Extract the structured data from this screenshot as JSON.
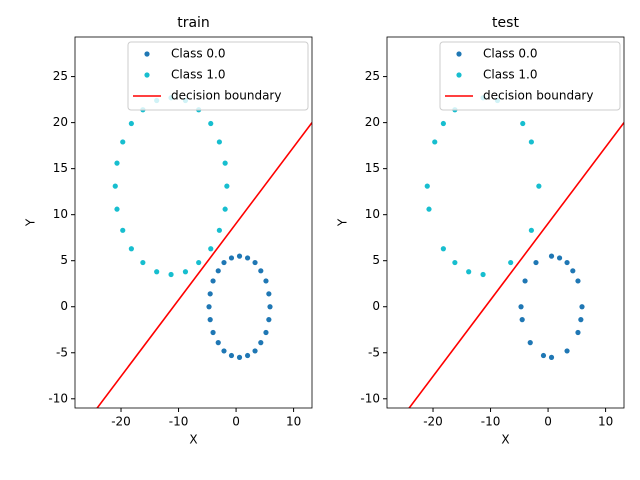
{
  "chart_data": [
    {
      "type": "scatter",
      "title": "train",
      "xlabel": "X",
      "ylabel": "Y",
      "xlim": [
        -28,
        13.2
      ],
      "ylim": [
        -11,
        29.3
      ],
      "xticks": [
        -20,
        -10,
        0,
        10
      ],
      "yticks": [
        -10,
        -5,
        0,
        5,
        10,
        15,
        20,
        25
      ],
      "legend": "upper right",
      "series": [
        {
          "name": "Class 0.0",
          "color": "#1f77b4",
          "x": [
            5.9,
            5.7,
            5.2,
            4.3,
            3.3,
            2.0,
            0.6,
            -0.8,
            -2.1,
            -3.1,
            -4.0,
            -4.5,
            -4.7,
            -4.5,
            -4.0,
            -3.1,
            -2.1,
            -0.8,
            0.6,
            2.0,
            3.3,
            4.3,
            5.2,
            5.7
          ],
          "y": [
            0,
            1.4,
            2.8,
            3.9,
            4.8,
            5.3,
            5.5,
            5.3,
            4.8,
            3.9,
            2.8,
            1.4,
            0,
            -1.4,
            -2.8,
            -3.9,
            -4.8,
            -5.3,
            -5.5,
            -5.3,
            -4.8,
            -3.9,
            -2.8,
            -1.4
          ]
        },
        {
          "name": "Class 1.0",
          "color": "#17becf",
          "x": [
            -1.6,
            -1.9,
            -2.9,
            -4.4,
            -6.5,
            -8.8,
            -11.3,
            -13.8,
            -16.2,
            -18.2,
            -19.7,
            -20.7,
            -21.0,
            -20.7,
            -19.7,
            -18.2,
            -16.2,
            -13.8,
            -11.3,
            -8.8,
            -6.5,
            -4.4,
            -2.9,
            -1.9
          ],
          "y": [
            13.1,
            15.6,
            17.9,
            19.9,
            21.4,
            22.4,
            22.7,
            22.4,
            21.4,
            19.9,
            17.9,
            15.6,
            13.1,
            10.6,
            8.3,
            6.3,
            4.8,
            3.8,
            3.5,
            3.8,
            4.8,
            6.3,
            8.3,
            10.6
          ]
        },
        {
          "name": "decision boundary",
          "color": "#ff0000",
          "type": "line",
          "x": [
            -28,
            13.2
          ],
          "y": [
            -14.2,
            20
          ]
        }
      ]
    },
    {
      "type": "scatter",
      "title": "test",
      "xlabel": "X",
      "ylabel": "Y",
      "xlim": [
        -28,
        13.2
      ],
      "ylim": [
        -11,
        29.3
      ],
      "xticks": [
        -20,
        -10,
        0,
        10
      ],
      "yticks": [
        -10,
        -5,
        0,
        5,
        10,
        15,
        20,
        25
      ],
      "legend": "upper right",
      "series": [
        {
          "name": "Class 0.0",
          "color": "#1f77b4",
          "x": [
            5.9,
            5.2,
            3.3,
            2.0,
            0.6,
            -2.1,
            -4.0,
            -4.7,
            -4.5,
            -3.1,
            -0.8,
            0.6,
            3.3,
            5.2,
            5.7,
            4.3
          ],
          "y": [
            0,
            2.8,
            4.8,
            5.3,
            5.5,
            4.8,
            2.8,
            0,
            -1.4,
            -3.9,
            -5.3,
            -5.5,
            -4.8,
            -2.8,
            -1.4,
            3.9
          ]
        },
        {
          "name": "Class 1.0",
          "color": "#17becf",
          "x": [
            -1.6,
            -2.9,
            -4.4,
            -8.8,
            -11.3,
            -16.2,
            -18.2,
            -19.7,
            -21.0,
            -20.7,
            -18.2,
            -16.2,
            -13.8,
            -11.3,
            -6.5,
            -2.9
          ],
          "y": [
            13.1,
            17.9,
            19.9,
            22.4,
            22.7,
            21.4,
            19.9,
            17.9,
            13.1,
            10.6,
            6.3,
            4.8,
            3.8,
            3.5,
            4.8,
            8.3
          ]
        },
        {
          "name": "decision boundary",
          "color": "#ff0000",
          "type": "line",
          "x": [
            -28,
            13.2
          ],
          "y": [
            -14.2,
            20
          ]
        }
      ]
    }
  ]
}
